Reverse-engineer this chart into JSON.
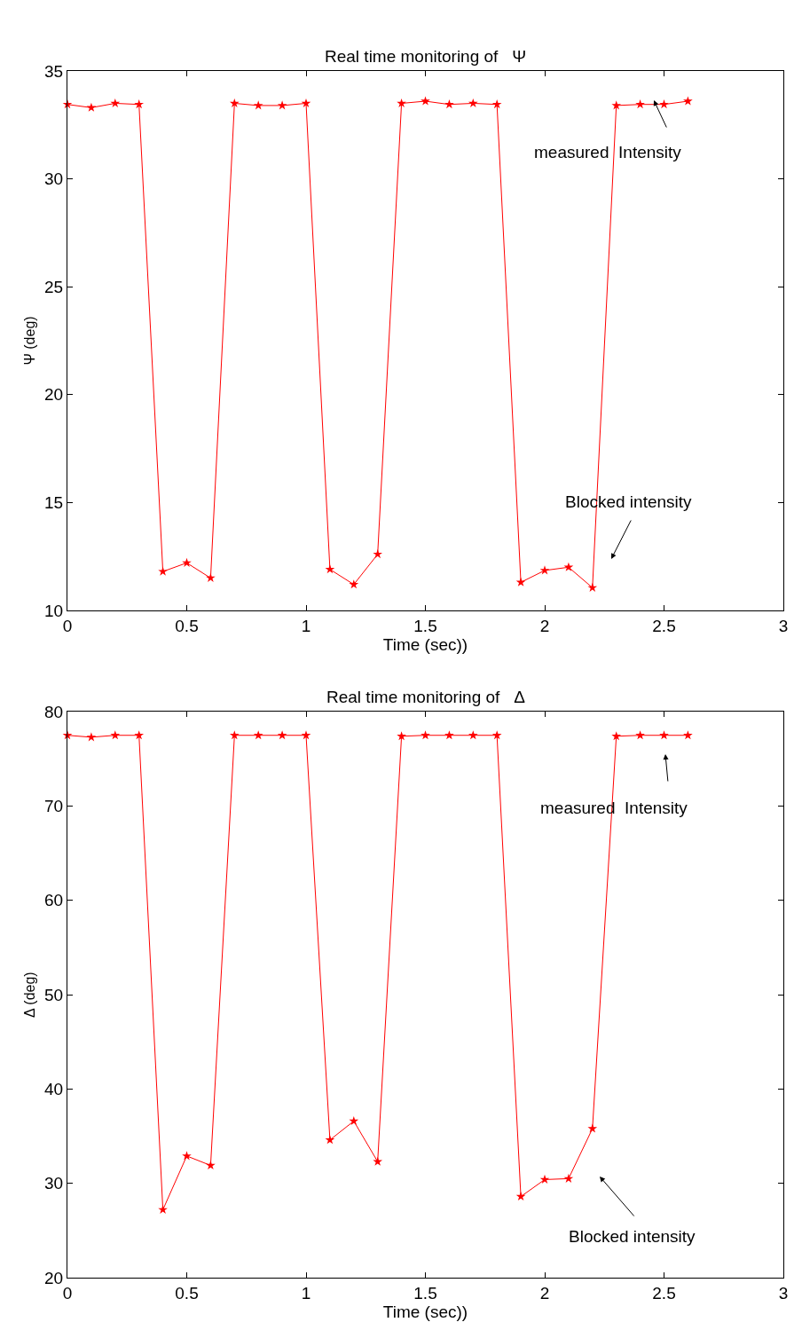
{
  "chart_data": [
    {
      "type": "line",
      "title": "Real time monitoring of   Ψ",
      "xlabel": "Time (sec))",
      "ylabel": "Ψ (deg)",
      "x": [
        0,
        0.1,
        0.2,
        0.3,
        0.4,
        0.5,
        0.6,
        0.7,
        0.8,
        0.9,
        1.0,
        1.1,
        1.2,
        1.3,
        1.4,
        1.5,
        1.6,
        1.7,
        1.8,
        1.9,
        2.0,
        2.1,
        2.2,
        2.3,
        2.4,
        2.5,
        2.6
      ],
      "series": [
        {
          "color": "#ff0000",
          "values": [
            33.45,
            33.3,
            33.5,
            33.45,
            11.8,
            12.2,
            11.5,
            33.5,
            33.4,
            33.4,
            33.5,
            11.9,
            11.2,
            12.6,
            33.5,
            33.6,
            33.45,
            33.5,
            33.45,
            11.3,
            11.85,
            12.0,
            11.05,
            33.4,
            33.45,
            33.45,
            33.6
          ]
        }
      ],
      "xlim": [
        0,
        3
      ],
      "xticks": [
        0,
        0.5,
        1,
        1.5,
        2,
        2.5,
        3
      ],
      "ylim": [
        10,
        35
      ],
      "yticks": [
        10,
        15,
        20,
        25,
        30,
        35
      ],
      "annotations": [
        "measured  Intensity",
        "Blocked intensity"
      ],
      "marker": "star",
      "line_style": "solid"
    },
    {
      "type": "line",
      "title": "Real time monitoring of   Δ",
      "xlabel": "Time (sec))",
      "ylabel": "Δ (deg)",
      "x": [
        0,
        0.1,
        0.2,
        0.3,
        0.4,
        0.5,
        0.6,
        0.7,
        0.8,
        0.9,
        1.0,
        1.1,
        1.2,
        1.3,
        1.4,
        1.5,
        1.6,
        1.7,
        1.8,
        1.9,
        2.0,
        2.1,
        2.2,
        2.3,
        2.4,
        2.5,
        2.6
      ],
      "series": [
        {
          "color": "#ff0000",
          "values": [
            77.5,
            77.3,
            77.5,
            77.5,
            27.2,
            32.9,
            31.9,
            77.5,
            77.5,
            77.5,
            77.5,
            34.6,
            36.6,
            32.3,
            77.4,
            77.5,
            77.5,
            77.5,
            77.5,
            28.6,
            30.4,
            30.5,
            35.8,
            77.4,
            77.5,
            77.5,
            77.5
          ]
        }
      ],
      "xlim": [
        0,
        3
      ],
      "xticks": [
        0,
        0.5,
        1,
        1.5,
        2,
        2.5,
        3
      ],
      "ylim": [
        20,
        80
      ],
      "yticks": [
        20,
        30,
        40,
        50,
        60,
        70,
        80
      ],
      "annotations": [
        "measured  Intensity",
        "Blocked intensity"
      ],
      "marker": "star",
      "line_style": "solid"
    }
  ]
}
